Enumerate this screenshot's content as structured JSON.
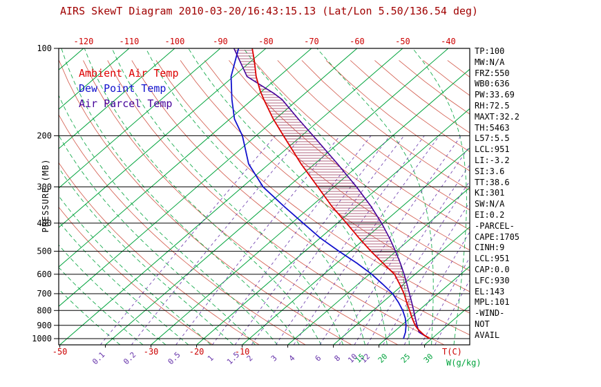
{
  "title": "AIRS SkewT Diagram 2010-03-20/16:43:15.13 (Lat/Lon 5.50/136.54 deg)",
  "legend": {
    "items": [
      {
        "label": "Ambient Air Temp",
        "color": "#dd0000"
      },
      {
        "label": "Dew Point Temp",
        "color": "#1111cc"
      },
      {
        "label": "Air Parcel Temp",
        "color": "#440099"
      }
    ]
  },
  "axis_labels": {
    "pressure": "PRESSURE (MB)",
    "temp_unit": "T(C)",
    "mixing_unit": "W(g/kg)"
  },
  "stats_panel": {
    "lines": [
      "TP:100",
      "MW:N/A",
      "FRZ:550",
      "WB0:636",
      "PW:33.69",
      "RH:72.5",
      "MAXT:32.2",
      "TH:5463",
      "L57:5.5",
      "LCL:951",
      "LI:-3.2",
      "SI:3.6",
      "TT:38.6",
      "KI:301",
      "SW:N/A",
      "EI:0.2",
      "-PARCEL-",
      "CAPE:1705",
      "CINH:9",
      "LCL:951",
      "CAP:0.0",
      "LFC:930",
      "EL:143",
      "MPL:101",
      "-WIND-",
      "NOT",
      "AVAIL"
    ]
  },
  "colors": {
    "background": "#ffffff",
    "title": "#a00000",
    "axis_red": "#cc0000",
    "ambient": "#dd0000",
    "dew": "#1111cc",
    "parcel": "#440099",
    "isotherm": "#00a33c",
    "moist_adiabat": "#00a33c",
    "mixing_ratio": "#6633aa",
    "dry_adiabat": "#cc4433",
    "hatch": "#993355",
    "grid_black": "#000000"
  },
  "chart_data": {
    "type": "line",
    "subtype": "skew-t_log-p_sounding",
    "title": "AIRS SkewT Diagram 2010-03-20/16:43:15.13 (Lat/Lon 5.50/136.54 deg)",
    "xlabel": "T(C)",
    "ylabel": "PRESSURE (MB)",
    "pressure_range_mb": [
      100,
      1050
    ],
    "pressure_scale": "log",
    "pressure_ticks_mb": [
      100,
      200,
      300,
      400,
      500,
      600,
      700,
      800,
      900,
      1000
    ],
    "top_temp_ticks_c": [
      -120,
      -110,
      -100,
      -90,
      -80,
      -70,
      -60,
      -50,
      -40
    ],
    "bottom_temp_ticks_c": [
      -50,
      -30,
      -20,
      -10
    ],
    "isotherm_step_c": 10,
    "mixing_ratio_lines_g_kg": [
      0.1,
      0.2,
      0.5,
      1,
      1.5,
      2,
      3,
      4,
      6,
      8,
      10,
      12,
      15,
      20,
      25,
      30
    ],
    "mixing_ratio_labeled": [
      0.1,
      0.2,
      0.5,
      1,
      1.5,
      2,
      3,
      4,
      6,
      8,
      10,
      12
    ],
    "moist_adiabat_lines_c": [
      -40,
      -35,
      -30,
      -25,
      -20,
      -15,
      -10,
      -5,
      0,
      5,
      10,
      15,
      20,
      25,
      30,
      35,
      40
    ],
    "moist_adiabat_labeled_c": [
      15,
      20,
      25,
      30
    ],
    "hatched_region": "CAPE/CIN area between Air Parcel Temp and Ambient Air Temp curves",
    "series": [
      {
        "id": "temp",
        "name": "Ambient Air Temp",
        "color": "#dd0000",
        "pressure_mb": [
          1000,
          975,
          950,
          925,
          900,
          850,
          800,
          750,
          700,
          650,
          600,
          550,
          500,
          450,
          400,
          350,
          300,
          250,
          200,
          175,
          150,
          140,
          125,
          110,
          100
        ],
        "temp_c": [
          29.5,
          27.6,
          26.0,
          24.4,
          23.0,
          20.5,
          18.0,
          15.3,
          12.5,
          9.2,
          5.5,
          0.2,
          -5.5,
          -11.5,
          -18.0,
          -25.5,
          -33.5,
          -43.0,
          -54.0,
          -60.5,
          -67.5,
          -70.5,
          -75.0,
          -79.5,
          -83.0
        ]
      },
      {
        "id": "dew",
        "name": "Dew Point Temp",
        "color": "#1111cc",
        "pressure_mb": [
          1000,
          975,
          950,
          925,
          900,
          850,
          800,
          750,
          700,
          650,
          600,
          550,
          500,
          450,
          400,
          350,
          300,
          250,
          200,
          175,
          150,
          125,
          100
        ],
        "temp_c": [
          23.8,
          23.2,
          22.6,
          21.8,
          21.0,
          19.0,
          16.5,
          13.5,
          10.0,
          5.5,
          0.5,
          -5.5,
          -12.5,
          -20.0,
          -27.5,
          -36.0,
          -45.5,
          -54.5,
          -63.0,
          -69.0,
          -74.5,
          -80.5,
          -86.0
        ]
      },
      {
        "id": "parcel",
        "name": "Air Parcel Temp",
        "color": "#440099",
        "pressure_mb": [
          1000,
          951,
          900,
          850,
          800,
          750,
          700,
          650,
          600,
          550,
          500,
          450,
          400,
          350,
          300,
          250,
          200,
          175,
          150,
          143,
          125,
          100
        ],
        "temp_c": [
          29.5,
          25.6,
          23.4,
          21.2,
          18.9,
          16.4,
          13.7,
          10.8,
          7.6,
          4.0,
          -0.1,
          -4.8,
          -10.3,
          -16.9,
          -25.0,
          -35.0,
          -47.5,
          -55.0,
          -63.5,
          -66.8,
          -77.0,
          -87.0
        ]
      }
    ]
  }
}
